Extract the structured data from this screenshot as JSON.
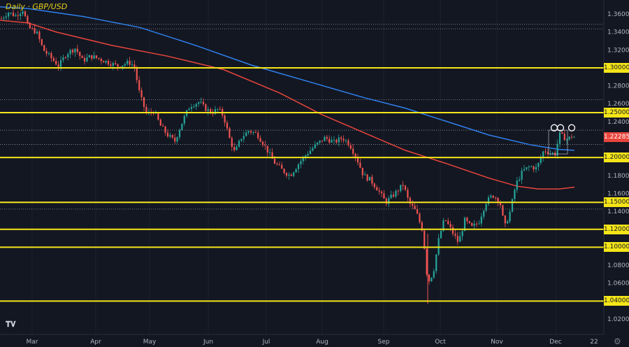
{
  "title": "Daily · GBP/USD",
  "chart_data": {
    "type": "candlestick",
    "symbol": "GBP/USD",
    "timeframe": "Daily",
    "ylim": [
      1.01,
      1.37
    ],
    "y_ticks": [
      "1.36000",
      "1.34000",
      "1.32000",
      "1.28000",
      "1.26000",
      "1.24000",
      "1.18000",
      "1.16000",
      "1.14000",
      "1.08000",
      "1.06000",
      "1.02000"
    ],
    "x_ticks": [
      "Mar",
      "Apr",
      "May",
      "Jun",
      "Jul",
      "Aug",
      "Sep",
      "Oct",
      "Nov",
      "Dec",
      "22"
    ],
    "horizontal_levels": [
      {
        "value": 1.3,
        "label": "1.30000"
      },
      {
        "value": 1.25,
        "label": "1.25000"
      },
      {
        "value": 1.2,
        "label": "1.20000"
      },
      {
        "value": 1.15,
        "label": "1.15000"
      },
      {
        "value": 1.12,
        "label": "1.12000"
      },
      {
        "value": 1.1,
        "label": "1.10000"
      },
      {
        "value": 1.04,
        "label": "1.04000"
      }
    ],
    "dotted_levels": [
      1.3485,
      1.3435,
      1.2645,
      1.2305,
      1.2145,
      1.1505,
      1.1425
    ],
    "last_price": {
      "value": 1.22285,
      "label": "1.22285"
    },
    "ma_200_blue": [
      [
        0,
        1.368
      ],
      [
        40,
        1.366
      ],
      [
        120,
        1.357
      ],
      [
        200,
        1.345
      ],
      [
        280,
        1.325
      ],
      [
        360,
        1.303
      ],
      [
        440,
        1.285
      ],
      [
        520,
        1.267
      ],
      [
        580,
        1.255
      ],
      [
        640,
        1.24
      ],
      [
        700,
        1.225
      ],
      [
        760,
        1.214
      ],
      [
        800,
        1.209
      ],
      [
        822,
        1.208
      ]
    ],
    "ma_100_red": [
      [
        0,
        1.353
      ],
      [
        40,
        1.35
      ],
      [
        80,
        1.34
      ],
      [
        160,
        1.325
      ],
      [
        240,
        1.313
      ],
      [
        320,
        1.298
      ],
      [
        400,
        1.272
      ],
      [
        460,
        1.248
      ],
      [
        520,
        1.228
      ],
      [
        580,
        1.208
      ],
      [
        640,
        1.193
      ],
      [
        700,
        1.177
      ],
      [
        740,
        1.168
      ],
      [
        770,
        1.165
      ],
      [
        800,
        1.165
      ],
      [
        822,
        1.167
      ]
    ],
    "candle_path": [
      [
        2,
        1.355
      ],
      [
        12,
        1.362
      ],
      [
        22,
        1.358
      ],
      [
        33,
        1.365
      ],
      [
        40,
        1.345
      ],
      [
        52,
        1.34
      ],
      [
        62,
        1.32
      ],
      [
        72,
        1.312
      ],
      [
        84,
        1.302
      ],
      [
        95,
        1.316
      ],
      [
        108,
        1.322
      ],
      [
        118,
        1.308
      ],
      [
        130,
        1.313
      ],
      [
        142,
        1.31
      ],
      [
        155,
        1.306
      ],
      [
        168,
        1.302
      ],
      [
        185,
        1.306
      ],
      [
        192,
        1.302
      ],
      [
        200,
        1.27
      ],
      [
        210,
        1.248
      ],
      [
        220,
        1.252
      ],
      [
        230,
        1.235
      ],
      [
        240,
        1.225
      ],
      [
        250,
        1.218
      ],
      [
        262,
        1.242
      ],
      [
        272,
        1.258
      ],
      [
        285,
        1.262
      ],
      [
        293,
        1.255
      ],
      [
        303,
        1.25
      ],
      [
        312,
        1.254
      ],
      [
        320,
        1.246
      ],
      [
        328,
        1.222
      ],
      [
        336,
        1.205
      ],
      [
        345,
        1.222
      ],
      [
        356,
        1.23
      ],
      [
        368,
        1.226
      ],
      [
        378,
        1.214
      ],
      [
        392,
        1.195
      ],
      [
        405,
        1.185
      ],
      [
        415,
        1.18
      ],
      [
        428,
        1.194
      ],
      [
        440,
        1.205
      ],
      [
        452,
        1.214
      ],
      [
        465,
        1.222
      ],
      [
        478,
        1.217
      ],
      [
        490,
        1.222
      ],
      [
        500,
        1.215
      ],
      [
        510,
        1.2
      ],
      [
        520,
        1.18
      ],
      [
        530,
        1.175
      ],
      [
        540,
        1.165
      ],
      [
        552,
        1.15
      ],
      [
        565,
        1.16
      ],
      [
        577,
        1.17
      ],
      [
        585,
        1.15
      ],
      [
        595,
        1.14
      ],
      [
        605,
        1.118
      ],
      [
        612,
        1.06
      ],
      [
        620,
        1.072
      ],
      [
        628,
        1.11
      ],
      [
        636,
        1.132
      ],
      [
        645,
        1.12
      ],
      [
        656,
        1.105
      ],
      [
        665,
        1.13
      ],
      [
        675,
        1.122
      ],
      [
        685,
        1.128
      ],
      [
        695,
        1.15
      ],
      [
        705,
        1.158
      ],
      [
        715,
        1.152
      ],
      [
        722,
        1.122
      ],
      [
        730,
        1.14
      ],
      [
        738,
        1.17
      ],
      [
        748,
        1.185
      ],
      [
        758,
        1.19
      ],
      [
        768,
        1.188
      ],
      [
        778,
        1.208
      ],
      [
        787,
        1.205
      ],
      [
        795,
        1.204
      ],
      [
        800,
        1.226
      ],
      [
        806,
        1.223
      ],
      [
        812,
        1.22
      ],
      [
        818,
        1.224
      ],
      [
        822,
        1.2228
      ]
    ],
    "markers": [
      {
        "x": 793,
        "y": 1.23
      },
      {
        "x": 802,
        "y": 1.23
      },
      {
        "x": 818,
        "y": 1.23
      }
    ],
    "box": {
      "x0": 785,
      "x1": 812,
      "y0": 1.204,
      "y1": 1.2305
    }
  }
}
